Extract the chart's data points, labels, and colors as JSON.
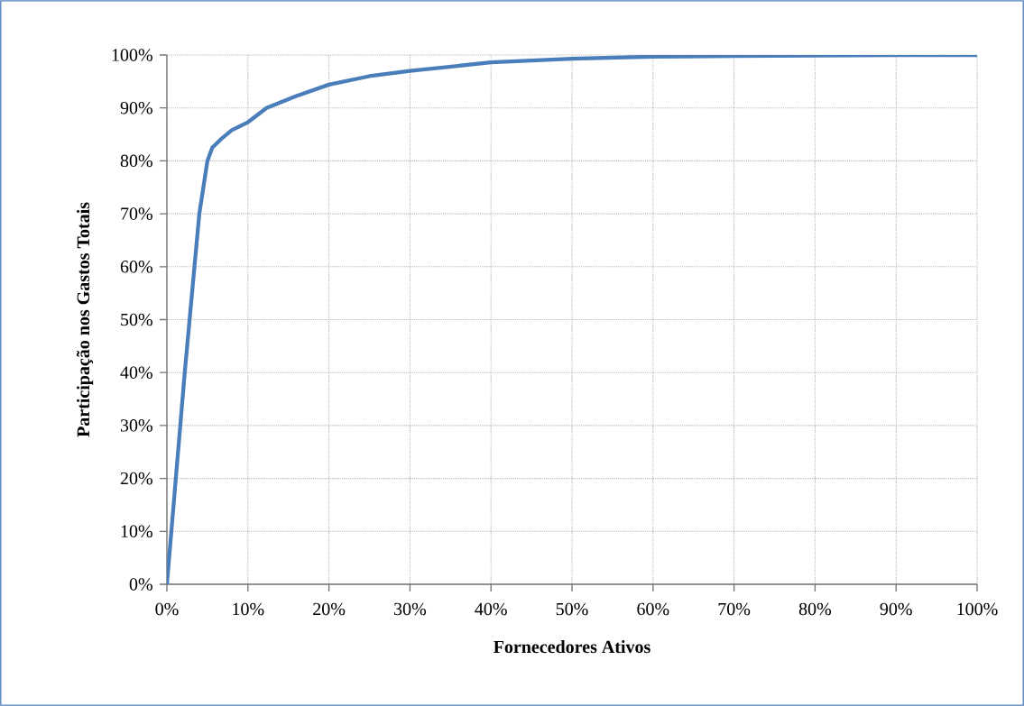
{
  "chart_data": {
    "type": "line",
    "xlabel": "Fornecedores Ativos",
    "ylabel": "Participação nos Gastos Totais",
    "x": [
      0,
      1.1,
      2.2,
      3.4,
      4.0,
      5.0,
      5.6,
      6.6,
      8,
      10,
      12.3,
      15.9,
      20,
      25,
      30,
      40,
      50,
      60,
      70,
      80,
      90,
      100
    ],
    "series": [
      {
        "color": "#4a7ebb",
        "values": [
          0,
          20,
          40,
          60,
          70,
          80,
          82.5,
          84,
          85.8,
          87.3,
          90,
          92.2,
          94.4,
          96,
          97,
          98.6,
          99.3,
          99.7,
          99.8,
          99.9,
          100,
          100
        ]
      }
    ],
    "xlim": [
      0,
      100
    ],
    "ylim": [
      0,
      100
    ],
    "xticks": [
      {
        "value": 0,
        "label": "0%"
      },
      {
        "value": 10,
        "label": "10%"
      },
      {
        "value": 20,
        "label": "20%"
      },
      {
        "value": 30,
        "label": "30%"
      },
      {
        "value": 40,
        "label": "40%"
      },
      {
        "value": 50,
        "label": "50%"
      },
      {
        "value": 60,
        "label": "60%"
      },
      {
        "value": 70,
        "label": "70%"
      },
      {
        "value": 80,
        "label": "80%"
      },
      {
        "value": 90,
        "label": "90%"
      },
      {
        "value": 100,
        "label": "100%"
      }
    ],
    "yticks": [
      {
        "value": 0,
        "label": "0%"
      },
      {
        "value": 10,
        "label": "10%"
      },
      {
        "value": 20,
        "label": "20%"
      },
      {
        "value": 30,
        "label": "30%"
      },
      {
        "value": 40,
        "label": "40%"
      },
      {
        "value": 50,
        "label": "50%"
      },
      {
        "value": 60,
        "label": "60%"
      },
      {
        "value": 70,
        "label": "70%"
      },
      {
        "value": 80,
        "label": "80%"
      },
      {
        "value": 90,
        "label": "90%"
      },
      {
        "value": 100,
        "label": "100%"
      }
    ],
    "grid": true,
    "marker": "none",
    "line_style": "solid"
  }
}
